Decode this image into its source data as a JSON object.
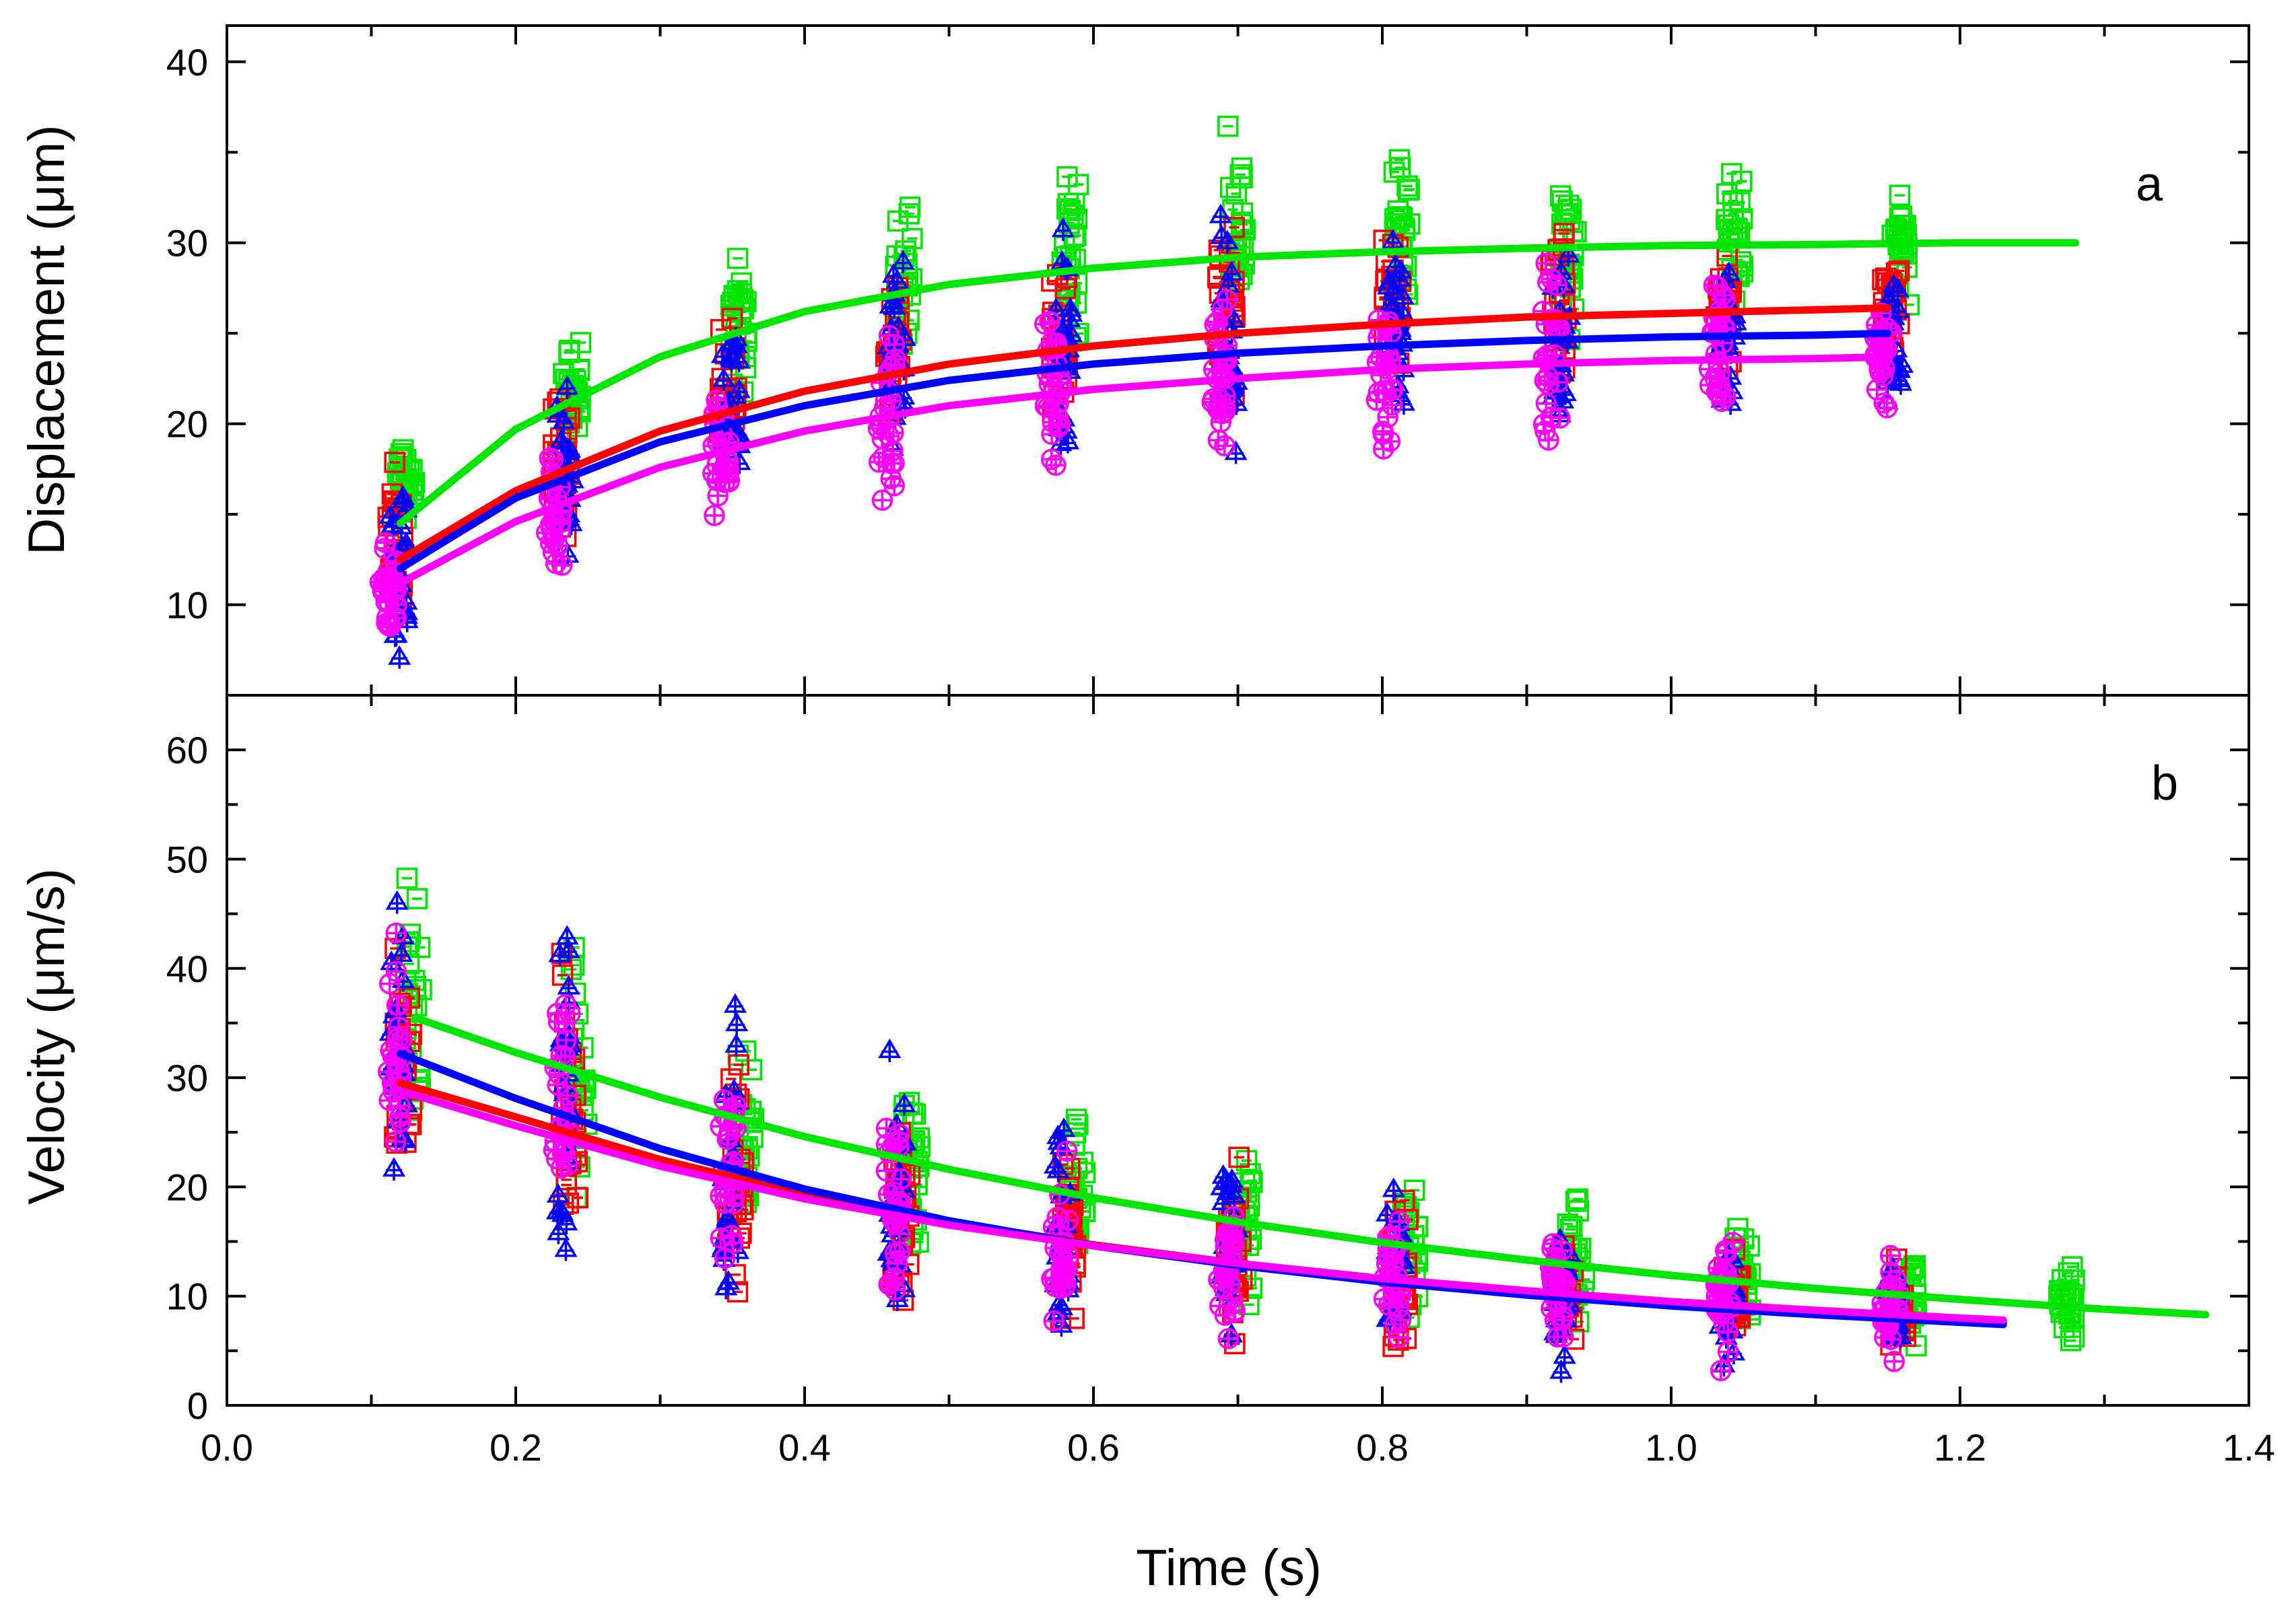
{
  "colors": {
    "series_green": "#00e600",
    "series_red": "#ff0000",
    "series_blue": "#0000ff",
    "series_magenta": "#ff00ff",
    "axes": "#000000",
    "background": "#ffffff"
  },
  "chart_data": [
    {
      "type": "scatter",
      "panel_label": "a",
      "title": "",
      "xlabel": "Time (s)",
      "ylabel": "Displacement (μm)",
      "xlim": [
        0.0,
        1.4
      ],
      "ylim": [
        5,
        42
      ],
      "xticks": [
        "0.0",
        "0.2",
        "0.4",
        "0.6",
        "0.8",
        "1.0",
        "1.2",
        "1.4"
      ],
      "yticks": [
        10,
        20,
        30,
        40
      ],
      "ytick_labels": [
        "10",
        "20",
        "30",
        "40"
      ],
      "grid": false,
      "legend": "none",
      "series": [
        {
          "name": "green",
          "color_key": "series_green",
          "marker": "square",
          "x": [
            0.12,
            0.235,
            0.35,
            0.465,
            0.58,
            0.695,
            0.81,
            0.925,
            1.04,
            1.155
          ],
          "y_mean": [
            16.5,
            22.0,
            25.5,
            28.0,
            29.5,
            30.0,
            30.0,
            30.0,
            30.0,
            30.0
          ],
          "y_spread": [
            4.0,
            4.5,
            5.5,
            6.0,
            7.0,
            7.0,
            7.0,
            6.0,
            5.0,
            4.5
          ],
          "fit": {
            "x": [
              0.12,
              0.2,
              0.3,
              0.4,
              0.5,
              0.6,
              0.7,
              0.8,
              0.9,
              1.0,
              1.1,
              1.2,
              1.28
            ],
            "y": [
              14.5,
              19.7,
              23.7,
              26.2,
              27.7,
              28.6,
              29.2,
              29.5,
              29.7,
              29.85,
              29.9,
              30.0,
              30.0
            ]
          }
        },
        {
          "name": "red",
          "color_key": "series_red",
          "marker": "square",
          "x": [
            0.12,
            0.235,
            0.35,
            0.465,
            0.58,
            0.695,
            0.81,
            0.925,
            1.04,
            1.155
          ],
          "y_mean": [
            13.5,
            18.0,
            21.5,
            23.5,
            25.0,
            26.0,
            26.5,
            26.5,
            26.5,
            26.5
          ],
          "y_spread": [
            5.0,
            5.0,
            5.5,
            6.0,
            6.5,
            7.0,
            7.0,
            6.0,
            5.0,
            4.5
          ],
          "fit": {
            "x": [
              0.12,
              0.2,
              0.3,
              0.4,
              0.5,
              0.6,
              0.7,
              0.8,
              0.9,
              1.0,
              1.1,
              1.15
            ],
            "y": [
              12.5,
              16.3,
              19.6,
              21.8,
              23.3,
              24.3,
              25.0,
              25.5,
              25.9,
              26.1,
              26.3,
              26.4
            ]
          }
        },
        {
          "name": "blue",
          "color_key": "series_blue",
          "marker": "triangle-plus",
          "x": [
            0.115,
            0.23,
            0.345,
            0.46,
            0.575,
            0.69,
            0.805,
            0.92,
            1.035,
            1.15
          ],
          "y_mean": [
            12.0,
            17.0,
            20.5,
            22.5,
            23.5,
            24.0,
            24.5,
            24.5,
            24.5,
            24.5
          ],
          "y_spread": [
            6.0,
            7.0,
            8.0,
            9.0,
            9.5,
            9.0,
            8.0,
            7.0,
            6.0,
            5.0
          ],
          "fit": {
            "x": [
              0.12,
              0.2,
              0.3,
              0.4,
              0.5,
              0.6,
              0.7,
              0.8,
              0.9,
              1.0,
              1.1,
              1.15
            ],
            "y": [
              12.0,
              15.9,
              19.0,
              21.0,
              22.4,
              23.3,
              23.9,
              24.3,
              24.6,
              24.8,
              24.9,
              25.0
            ]
          }
        },
        {
          "name": "magenta",
          "color_key": "series_magenta",
          "marker": "circle-plus",
          "x": [
            0.115,
            0.23,
            0.345,
            0.46,
            0.575,
            0.69,
            0.805,
            0.92,
            1.035,
            1.15
          ],
          "y_mean": [
            11.0,
            15.0,
            18.0,
            20.5,
            22.0,
            23.0,
            23.5,
            24.0,
            24.0,
            24.0
          ],
          "y_spread": [
            4.0,
            4.5,
            5.5,
            6.5,
            7.0,
            7.0,
            7.0,
            6.0,
            5.5,
            4.5
          ],
          "fit": {
            "x": [
              0.12,
              0.2,
              0.3,
              0.4,
              0.5,
              0.6,
              0.7,
              0.8,
              0.9,
              1.0,
              1.1,
              1.15
            ],
            "y": [
              11.2,
              14.6,
              17.6,
              19.6,
              21.0,
              21.9,
              22.5,
              23.0,
              23.3,
              23.5,
              23.6,
              23.7
            ]
          }
        }
      ]
    },
    {
      "type": "scatter",
      "panel_label": "b",
      "title": "",
      "xlabel": "Time (s)",
      "ylabel": "Velocity (μm/s)",
      "xlim": [
        0.0,
        1.4
      ],
      "ylim": [
        0,
        65
      ],
      "xticks": [
        "0.0",
        "0.2",
        "0.4",
        "0.6",
        "0.8",
        "1.0",
        "1.2",
        "1.4"
      ],
      "yticks": [
        0,
        10,
        20,
        30,
        40,
        50,
        60
      ],
      "ytick_labels": [
        "0",
        "10",
        "20",
        "30",
        "40",
        "50",
        "60"
      ],
      "grid": false,
      "legend": "none",
      "series": [
        {
          "name": "green",
          "color_key": "series_green",
          "marker": "square",
          "x": [
            0.125,
            0.24,
            0.355,
            0.47,
            0.585,
            0.7,
            0.815,
            0.93,
            1.045,
            1.16,
            1.27
          ],
          "y_mean": [
            35.0,
            31.0,
            26.0,
            21.0,
            19.0,
            17.0,
            14.0,
            13.0,
            12.0,
            10.5,
            9.5
          ],
          "y_spread": [
            16.0,
            18.0,
            15.0,
            13.0,
            12.0,
            11.0,
            10.0,
            9.0,
            8.0,
            6.0,
            4.0
          ],
          "fit": {
            "x": [
              0.13,
              0.2,
              0.3,
              0.4,
              0.5,
              0.6,
              0.7,
              0.8,
              0.9,
              1.0,
              1.1,
              1.2,
              1.3,
              1.37
            ],
            "y": [
              35.5,
              32.3,
              28.2,
              24.6,
              21.6,
              19.0,
              16.8,
              14.9,
              13.3,
              11.9,
              10.7,
              9.7,
              8.8,
              8.3
            ]
          }
        },
        {
          "name": "red",
          "color_key": "series_red",
          "marker": "square",
          "x": [
            0.125,
            0.24,
            0.355,
            0.47,
            0.585,
            0.7,
            0.815,
            0.93,
            1.045,
            1.16
          ],
          "y_mean": [
            30.0,
            28.0,
            22.0,
            18.0,
            15.5,
            13.5,
            12.0,
            10.5,
            9.5,
            9.0
          ],
          "y_spread": [
            18.0,
            22.0,
            15.0,
            12.0,
            10.0,
            10.0,
            9.0,
            8.0,
            7.0,
            6.0
          ],
          "fit": {
            "x": [
              0.12,
              0.2,
              0.3,
              0.4,
              0.5,
              0.6,
              0.7,
              0.8,
              0.9,
              1.0,
              1.1,
              1.2,
              1.23
            ],
            "y": [
              29.5,
              26.4,
              22.5,
              19.3,
              16.8,
              14.7,
              13.0,
              11.6,
              10.4,
              9.4,
              8.5,
              7.8,
              7.6
            ]
          }
        },
        {
          "name": "blue",
          "color_key": "series_blue",
          "marker": "triangle-plus",
          "x": [
            0.115,
            0.23,
            0.345,
            0.46,
            0.575,
            0.69,
            0.805,
            0.92,
            1.035,
            1.15
          ],
          "y_mean": [
            31.0,
            30.0,
            24.0,
            19.0,
            17.0,
            15.0,
            12.5,
            10.5,
            9.5,
            9.0
          ],
          "y_spread": [
            20.0,
            24.0,
            20.0,
            16.0,
            16.0,
            12.0,
            10.0,
            8.0,
            7.0,
            7.0
          ],
          "fit": {
            "x": [
              0.12,
              0.2,
              0.3,
              0.4,
              0.5,
              0.6,
              0.7,
              0.8,
              0.9,
              1.0,
              1.1,
              1.2,
              1.23
            ],
            "y": [
              32.2,
              28.1,
              23.5,
              19.8,
              16.9,
              14.6,
              12.8,
              11.3,
              10.1,
              9.1,
              8.3,
              7.6,
              7.4
            ]
          }
        },
        {
          "name": "magenta",
          "color_key": "series_magenta",
          "marker": "circle-plus",
          "x": [
            0.12,
            0.235,
            0.35,
            0.465,
            0.58,
            0.695,
            0.81,
            0.925,
            1.04,
            1.155
          ],
          "y_mean": [
            30.0,
            28.0,
            21.0,
            17.0,
            15.0,
            13.0,
            11.5,
            10.5,
            9.5,
            9.0
          ],
          "y_spread": [
            14.0,
            18.0,
            14.0,
            12.0,
            10.0,
            10.0,
            9.0,
            8.0,
            7.0,
            6.0
          ],
          "fit": {
            "x": [
              0.12,
              0.2,
              0.3,
              0.4,
              0.5,
              0.6,
              0.7,
              0.8,
              0.9,
              1.0,
              1.1,
              1.2,
              1.23
            ],
            "y": [
              28.8,
              25.6,
              21.9,
              18.9,
              16.5,
              14.6,
              13.0,
              11.6,
              10.5,
              9.5,
              8.7,
              8.0,
              7.8
            ]
          }
        }
      ]
    }
  ]
}
